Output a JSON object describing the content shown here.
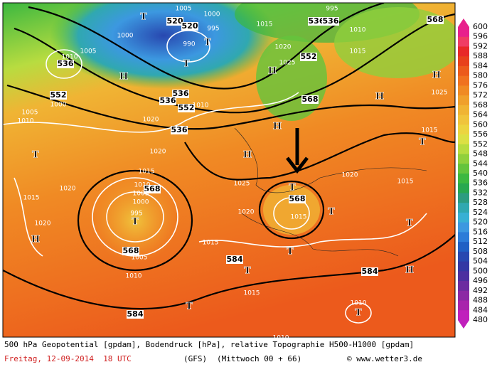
{
  "map": {
    "labels": [
      "1005",
      "1000",
      "995",
      "T",
      "520",
      "520",
      "995",
      "1015",
      "536",
      "536",
      "568",
      "1010",
      "1000",
      "990",
      "T",
      "1005",
      "1020",
      "552",
      "1015",
      "1010",
      "536",
      "T",
      "H",
      "1025",
      "H",
      "H",
      "552",
      "536",
      "1000",
      "536",
      "552",
      "1010",
      "568",
      "H",
      "1025",
      "1005",
      "1020",
      "1010",
      "536",
      "H",
      "1015",
      "T",
      "T",
      "1020",
      "H",
      "1015",
      "1020",
      "1020",
      "1010",
      "568",
      "1005",
      "1025",
      "T",
      "1015",
      "1015",
      "568",
      "1000",
      "995",
      "T",
      "T",
      "1015",
      "1020",
      "1020",
      "T",
      "H",
      "1015",
      "568",
      "1005",
      "T",
      "584",
      "T",
      "1010",
      "584",
      "H",
      "1015",
      "584",
      "T",
      "1010",
      "T",
      "1010"
    ]
  },
  "colorbar": {
    "labels": [
      "600",
      "596",
      "592",
      "588",
      "584",
      "580",
      "576",
      "572",
      "568",
      "564",
      "560",
      "556",
      "552",
      "548",
      "544",
      "540",
      "536",
      "532",
      "528",
      "524",
      "520",
      "516",
      "512",
      "508",
      "504",
      "500",
      "496",
      "492",
      "488",
      "484",
      "480"
    ],
    "colors": [
      "#e8208c",
      "#f03c64",
      "#e82828",
      "#e8401c",
      "#ec5a1c",
      "#f07220",
      "#f08a24",
      "#f0a02c",
      "#f0b434",
      "#f0c43c",
      "#ecd440",
      "#dce044",
      "#b8dc40",
      "#90d03c",
      "#64c43c",
      "#3cb840",
      "#28a850",
      "#2c9c80",
      "#30a8b0",
      "#38b0d4",
      "#3c98e0",
      "#2c7cd8",
      "#2060c4",
      "#2848b0",
      "#3438a4",
      "#4c30a0",
      "#6c2ca0",
      "#8c28a4",
      "#a824ac",
      "#c020bc"
    ]
  },
  "footer": {
    "line1": "500 hPa Geopotential [gpdam], Bodendruck [hPa], relative Topographie H500-H1000 [gpdam]",
    "date": "Freitag, 12-09-2014  18 UTC",
    "model": "(GFS)",
    "run": "(Mittwoch 00 + 66)",
    "credit": "© www.wetter3.de"
  }
}
